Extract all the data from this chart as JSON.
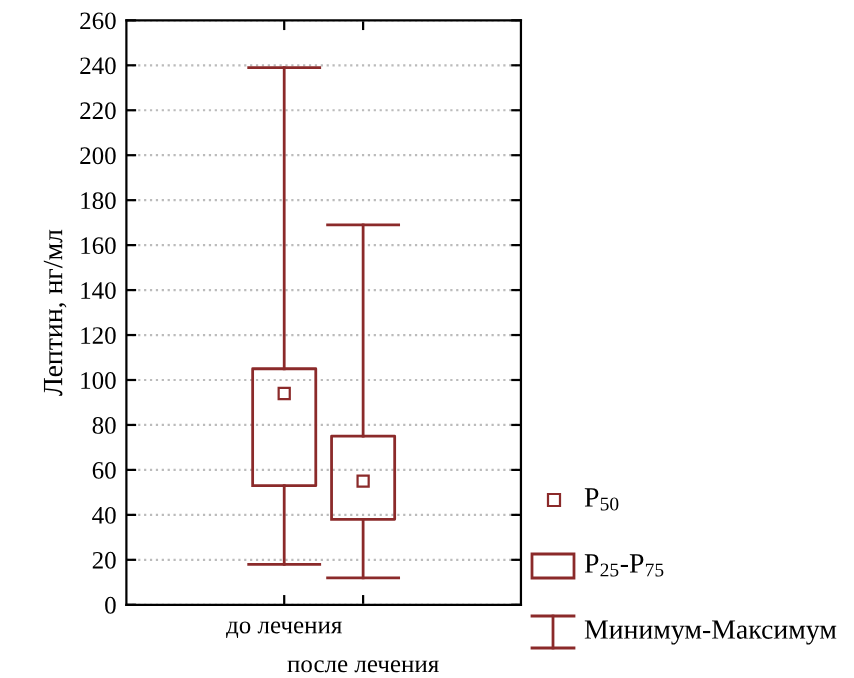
{
  "chart_data": {
    "type": "box",
    "ylabel": "Лептин, нг/мл",
    "categories": [
      "до лечения",
      "после лечения"
    ],
    "boxes": [
      {
        "low": 18,
        "q1": 53,
        "median": 94,
        "q3": 105,
        "high": 239
      },
      {
        "low": 12,
        "q1": 38,
        "median": 55,
        "q3": 75,
        "high": 169
      }
    ],
    "color": "#8b2a2a",
    "ylim": [
      0,
      260
    ],
    "yticks": [
      0,
      20,
      40,
      60,
      80,
      100,
      120,
      140,
      160,
      180,
      200,
      220,
      240,
      260
    ],
    "grid": "y",
    "marker": "square",
    "annotations": [
      "P$_{50}$",
      "P$_{25}$-P$_{75}$",
      "Минимум-Максимум"
    ]
  }
}
